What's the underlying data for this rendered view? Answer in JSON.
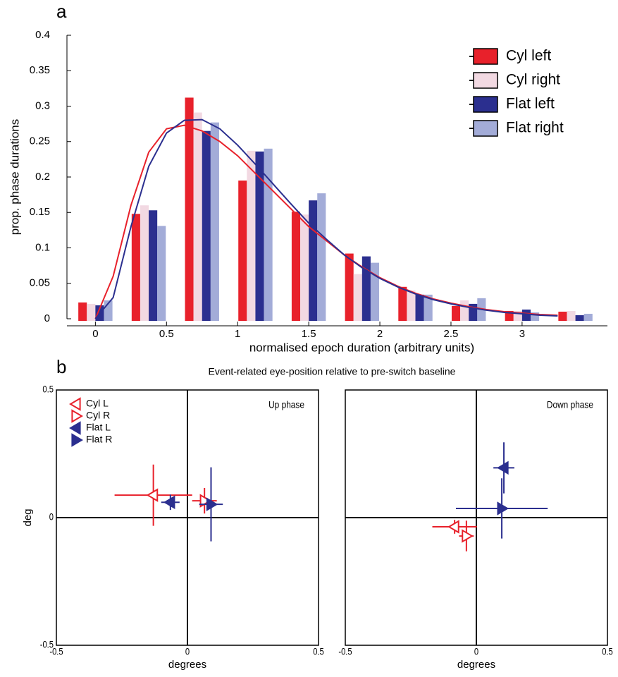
{
  "panel_labels": [
    "a",
    "b"
  ],
  "figure_title": "Event-related eye-position relative to pre-switch baseline",
  "chart_data": [
    {
      "type": "histogram",
      "xlabel": "normalised epoch duration (arbitrary units)",
      "ylabel": "prop. phase durations",
      "x": [
        0,
        0.375,
        0.75,
        1.125,
        1.5,
        1.875,
        2.25,
        2.625,
        3,
        3.375
      ],
      "series": [
        {
          "name": "Cyl left",
          "color": "#e8212b",
          "values": [
            0.023,
            0.148,
            0.312,
            0.195,
            0.151,
            0.092,
            0.045,
            0.018,
            0.011,
            0.01
          ]
        },
        {
          "name": "Cyl right",
          "color": "#f2d9e2",
          "values": [
            0.021,
            0.16,
            0.291,
            0.237,
            0.147,
            0.063,
            0.04,
            0.026,
            0.011,
            0.011
          ]
        },
        {
          "name": "Flat left",
          "color": "#2b2f8f",
          "values": [
            0.019,
            0.153,
            0.265,
            0.236,
            0.167,
            0.088,
            0.034,
            0.021,
            0.013,
            0.005
          ]
        },
        {
          "name": "Flat right",
          "color": "#a3acd8",
          "values": [
            0.026,
            0.131,
            0.277,
            0.24,
            0.177,
            0.079,
            0.034,
            0.029,
            0.009,
            0.007
          ]
        }
      ],
      "fit_x": [
        0,
        0.125,
        0.25,
        0.375,
        0.5,
        0.625,
        0.75,
        0.875,
        1,
        1.125,
        1.25,
        1.375,
        1.5,
        1.625,
        1.75,
        1.875,
        2,
        2.125,
        2.25,
        2.375,
        2.5,
        2.625,
        2.75,
        2.875,
        3,
        3.125,
        3.25
      ],
      "fits": [
        {
          "color": "#e8212b",
          "values": [
            0,
            0.06,
            0.16,
            0.235,
            0.268,
            0.273,
            0.265,
            0.25,
            0.23,
            0.205,
            0.18,
            0.155,
            0.13,
            0.11,
            0.09,
            0.073,
            0.058,
            0.046,
            0.036,
            0.028,
            0.022,
            0.017,
            0.013,
            0.01,
            0.008,
            0.006,
            0.005
          ]
        },
        {
          "color": "#2b2f8f",
          "values": [
            0,
            0.03,
            0.13,
            0.215,
            0.262,
            0.28,
            0.281,
            0.268,
            0.245,
            0.218,
            0.19,
            0.162,
            0.135,
            0.112,
            0.09,
            0.072,
            0.057,
            0.045,
            0.035,
            0.027,
            0.021,
            0.016,
            0.012,
            0.009,
            0.007,
            0.005,
            0.004
          ]
        }
      ],
      "xlim": [
        -0.2,
        3.6
      ],
      "xticks": [
        0,
        0.5,
        1,
        1.5,
        2,
        2.5,
        3
      ],
      "ylim": [
        0,
        0.4
      ],
      "yticks": [
        0,
        0.05,
        0.1,
        0.15,
        0.2,
        0.25,
        0.3,
        0.35,
        0.4
      ],
      "legend": "upper right"
    },
    {
      "type": "scatter",
      "annotation": "Up phase",
      "xlabel": "degrees",
      "ylabel": "deg",
      "xlim": [
        -0.5,
        0.5
      ],
      "xticks": [
        -0.5,
        0,
        0.5
      ],
      "ylim": [
        -0.5,
        0.5
      ],
      "yticks": [
        -0.5,
        0,
        0.5
      ],
      "legend": "upper left",
      "series": [
        {
          "name": "Cyl L",
          "color": "#e8212b",
          "marker": "left",
          "filled": false,
          "x": [
            -0.13
          ],
          "values": [
            0.088
          ],
          "xerr": [
            0.148
          ],
          "yerr": [
            0.12
          ]
        },
        {
          "name": "Cyl R",
          "color": "#e8212b",
          "marker": "right",
          "filled": false,
          "x": [
            0.065
          ],
          "values": [
            0.066
          ],
          "xerr": [
            0.047
          ],
          "yerr": [
            0.05
          ]
        },
        {
          "name": "Flat L",
          "color": "#2b2f8f",
          "marker": "left",
          "filled": true,
          "x": [
            -0.065
          ],
          "values": [
            0.06
          ],
          "xerr": [
            0.035
          ],
          "yerr": [
            0.03
          ]
        },
        {
          "name": "Flat R",
          "color": "#2b2f8f",
          "marker": "right",
          "filled": true,
          "x": [
            0.09
          ],
          "values": [
            0.052
          ],
          "xerr": [
            0.045
          ],
          "yerr": [
            0.145
          ]
        }
      ]
    },
    {
      "type": "scatter",
      "annotation": "Down phase",
      "xlabel": "degrees",
      "xlim": [
        -0.5,
        0.5
      ],
      "xticks": [
        -0.5,
        0,
        0.5
      ],
      "ylim": [
        -0.5,
        0.5
      ],
      "series": [
        {
          "color": "#e8212b",
          "marker": "left",
          "filled": false,
          "x": [
            -0.083
          ],
          "values": [
            -0.036
          ],
          "xerr": [
            0.085
          ],
          "yerr": [
            0.027
          ]
        },
        {
          "color": "#e8212b",
          "marker": "right",
          "filled": false,
          "x": [
            -0.038
          ],
          "values": [
            -0.072
          ],
          "xerr": [
            0.028
          ],
          "yerr": [
            0.06
          ]
        },
        {
          "color": "#2b2f8f",
          "marker": "left",
          "filled": true,
          "x": [
            0.105
          ],
          "values": [
            0.195
          ],
          "xerr": [
            0.04
          ],
          "yerr": [
            0.1
          ]
        },
        {
          "color": "#2b2f8f",
          "marker": "right",
          "filled": true,
          "x": [
            0.097
          ],
          "values": [
            0.036
          ],
          "xerr": [
            0.175
          ],
          "yerr": [
            0.118
          ]
        }
      ]
    }
  ]
}
